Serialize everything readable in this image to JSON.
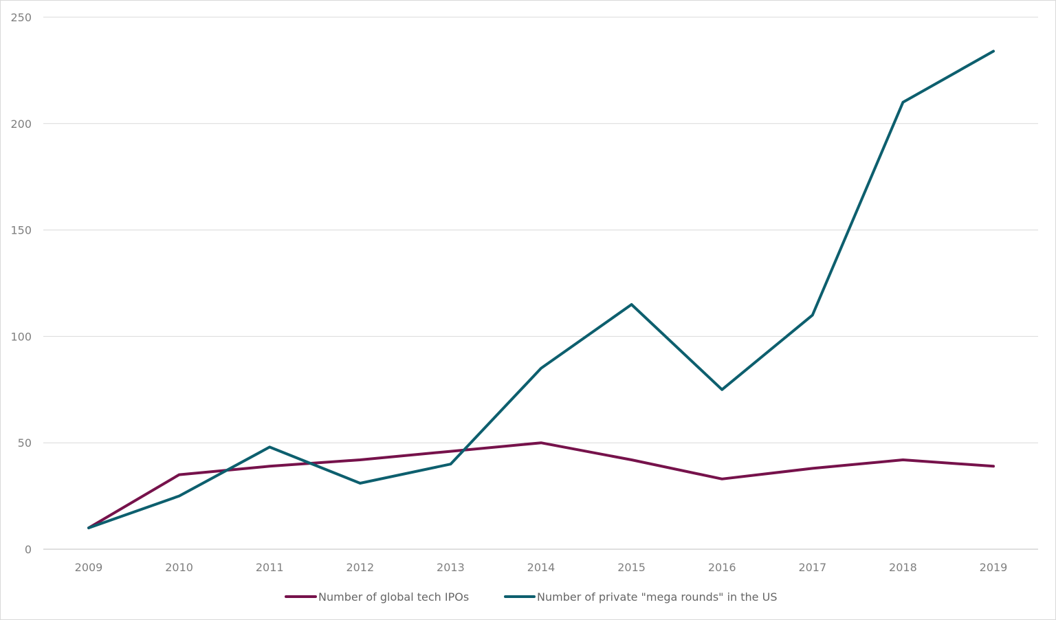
{
  "chart_data": {
    "type": "line",
    "title": "",
    "xlabel": "",
    "ylabel": "",
    "categories": [
      "2009",
      "2010",
      "2011",
      "2012",
      "2013",
      "2014",
      "2015",
      "2016",
      "2017",
      "2018",
      "2019"
    ],
    "ylim": [
      0,
      250
    ],
    "yticks": [
      "0",
      "50",
      "100",
      "150",
      "200",
      "250"
    ],
    "grid": "horizontal",
    "legend_position": "bottom",
    "series": [
      {
        "name": "Number of global tech IPOs",
        "color": "#76124b",
        "values": [
          10,
          35,
          39,
          42,
          46,
          50,
          42,
          33,
          38,
          42,
          39
        ]
      },
      {
        "name": "Number of private \"mega rounds\" in the US",
        "color": "#0d5f6e",
        "values": [
          10,
          25,
          48,
          31,
          40,
          85,
          115,
          75,
          110,
          210,
          234
        ]
      }
    ]
  }
}
